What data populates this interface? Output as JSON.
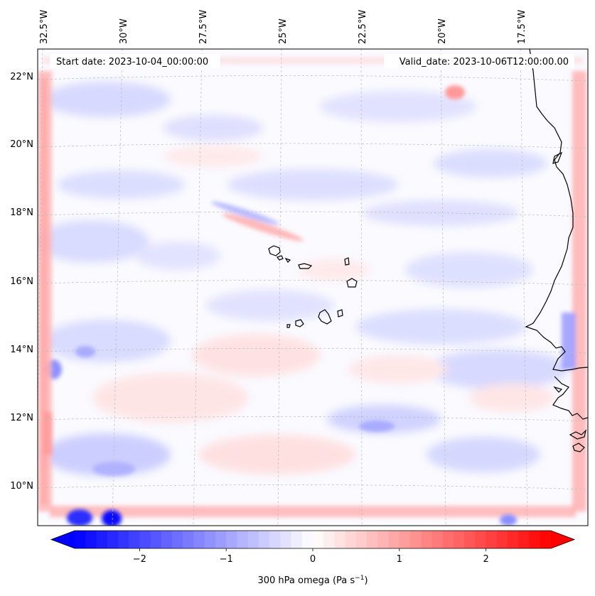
{
  "map": {
    "start_date": "Start date: 2023-10-04_00:00:00",
    "valid_date": "Valid_date: 2023-10-06T12:00:00.00",
    "lon_labels": [
      "32.5°W",
      "30°W",
      "27.5°W",
      "25°W",
      "22.5°W",
      "20°W",
      "17.5°W"
    ],
    "lat_labels": [
      "22°N",
      "20°N",
      "18°N",
      "16°N",
      "14°N",
      "12°N",
      "10°N"
    ],
    "variable": "300 hPa omega",
    "units_base": "(Pa s",
    "units_exp": "−1",
    "units_close": ")"
  },
  "colorbar": {
    "ticks": [
      "−2",
      "−1",
      "0",
      "1",
      "2"
    ],
    "tick_values": [
      -2,
      -1,
      0,
      1,
      2
    ],
    "min": -2.75,
    "max": 2.75,
    "colors": {
      "neg": "#0000ff",
      "mid": "#ffffff",
      "pos": "#ff0000"
    }
  },
  "style": {
    "coastline": "#000000",
    "gridline": "#bbbbbb",
    "frame": "#000000"
  }
}
